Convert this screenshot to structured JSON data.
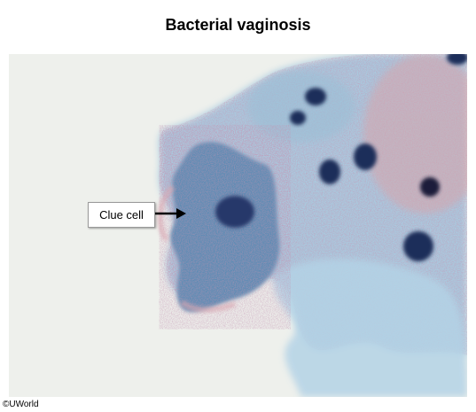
{
  "title": "Bacterial vaginosis",
  "label": "Clue cell",
  "copyright": "©UWorld",
  "colors": {
    "background": "#eef0ec",
    "cytoplasm_blue": "#8fbcd8",
    "cell_dark_blue": "#4f7fa6",
    "nucleus": "#1f2e5a",
    "stain_pink": "#d6a0a8"
  }
}
